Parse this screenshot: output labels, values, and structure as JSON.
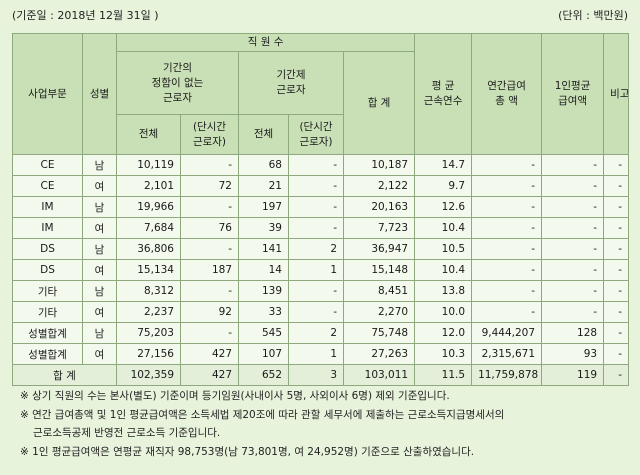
{
  "header": {
    "date_label": "(기준일 :  2018년 12월 31일 )",
    "unit_label": "(단위 : 백만원)"
  },
  "table": {
    "headers": {
      "division": "사업부문",
      "gender": "성별",
      "employees": "직 원 수",
      "regular_line1": "기간의",
      "regular_line2": "정함이 없는",
      "regular_line3": "근로자",
      "contract_line1": "기간제",
      "contract_line2": "근로자",
      "total_emp": "합 계",
      "tenure_line1": "평 균",
      "tenure_line2": "근속연수",
      "salary_line1": "연간급여",
      "salary_line2": "총 액",
      "avg_pay_line1": "1인평균",
      "avg_pay_line2": "급여액",
      "note": "비고",
      "all": "전체",
      "part_line1": "(단시간",
      "part_line2": "근로자)"
    },
    "rows": [
      {
        "division": "CE",
        "gender": "남",
        "reg_all": "10,119",
        "reg_part": "-",
        "con_all": "68",
        "con_part": "-",
        "total": "10,187",
        "tenure": "14.7",
        "salary": "-",
        "avg": "-",
        "note": "-"
      },
      {
        "division": "CE",
        "gender": "여",
        "reg_all": "2,101",
        "reg_part": "72",
        "con_all": "21",
        "con_part": "-",
        "total": "2,122",
        "tenure": "9.7",
        "salary": "-",
        "avg": "-",
        "note": "-"
      },
      {
        "division": "IM",
        "gender": "남",
        "reg_all": "19,966",
        "reg_part": "-",
        "con_all": "197",
        "con_part": "-",
        "total": "20,163",
        "tenure": "12.6",
        "salary": "-",
        "avg": "-",
        "note": "-"
      },
      {
        "division": "IM",
        "gender": "여",
        "reg_all": "7,684",
        "reg_part": "76",
        "con_all": "39",
        "con_part": "-",
        "total": "7,723",
        "tenure": "10.4",
        "salary": "-",
        "avg": "-",
        "note": "-"
      },
      {
        "division": "DS",
        "gender": "남",
        "reg_all": "36,806",
        "reg_part": "-",
        "con_all": "141",
        "con_part": "2",
        "total": "36,947",
        "tenure": "10.5",
        "salary": "-",
        "avg": "-",
        "note": "-"
      },
      {
        "division": "DS",
        "gender": "여",
        "reg_all": "15,134",
        "reg_part": "187",
        "con_all": "14",
        "con_part": "1",
        "total": "15,148",
        "tenure": "10.4",
        "salary": "-",
        "avg": "-",
        "note": "-"
      },
      {
        "division": "기타",
        "gender": "남",
        "reg_all": "8,312",
        "reg_part": "-",
        "con_all": "139",
        "con_part": "-",
        "total": "8,451",
        "tenure": "13.8",
        "salary": "-",
        "avg": "-",
        "note": "-"
      },
      {
        "division": "기타",
        "gender": "여",
        "reg_all": "2,237",
        "reg_part": "92",
        "con_all": "33",
        "con_part": "-",
        "total": "2,270",
        "tenure": "10.0",
        "salary": "-",
        "avg": "-",
        "note": "-"
      },
      {
        "division": "성별합계",
        "gender": "남",
        "reg_all": "75,203",
        "reg_part": "-",
        "con_all": "545",
        "con_part": "2",
        "total": "75,748",
        "tenure": "12.0",
        "salary": "9,444,207",
        "avg": "128",
        "note": "-"
      },
      {
        "division": "성별합계",
        "gender": "여",
        "reg_all": "27,156",
        "reg_part": "427",
        "con_all": "107",
        "con_part": "1",
        "total": "27,263",
        "tenure": "10.3",
        "salary": "2,315,671",
        "avg": "93",
        "note": "-"
      }
    ],
    "total_row": {
      "label": "합  계",
      "reg_all": "102,359",
      "reg_part": "427",
      "con_all": "652",
      "con_part": "3",
      "total": "103,011",
      "tenure": "11.5",
      "salary": "11,759,878",
      "avg": "119",
      "note": "-"
    }
  },
  "notes": {
    "n1": "※ 상기 직원의 수는 본사(별도) 기준이며 등기임원(사내이사 5명, 사외이사 6명) 제외 기준입니다.",
    "n2": "※ 연간 급여총액 및 1인 평균급여액은 소득세법 제20조에 따라 관할 세무서에 제출하는 근로소득지급명세서의",
    "n2_cont": "근로소득공제 반영전 근로소득 기준입니다.",
    "n3": "※ 1인 평균급여액은 연평균 재직자 98,753명(남 73,801명, 여 24,952명) 기준으로 산출하였습니다."
  }
}
